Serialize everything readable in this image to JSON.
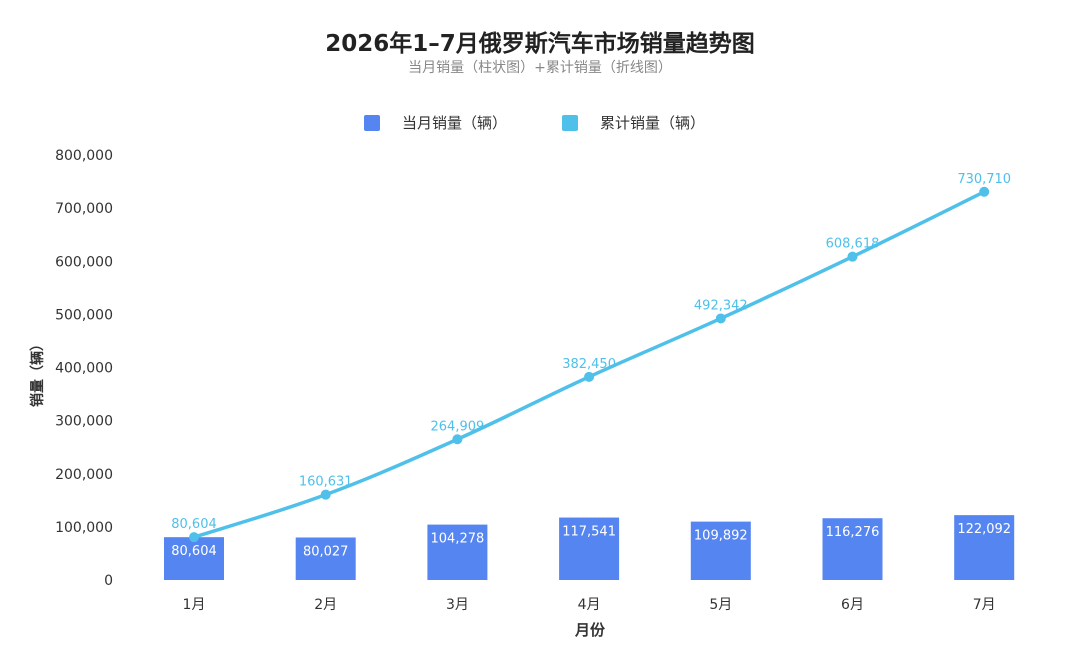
{
  "chart_data": {
    "type": "bar+line",
    "title": "2026年1–7月俄罗斯汽车市场销量趋势图",
    "subtitle": "当月销量（柱状图）+累计销量（折线图）",
    "xlabel": "月份",
    "ylabel": "销量（辆）",
    "categories": [
      "1月",
      "2月",
      "3月",
      "4月",
      "5月",
      "6月",
      "7月"
    ],
    "ylim": [
      0,
      800000
    ],
    "yticks": [
      0,
      100000,
      200000,
      300000,
      400000,
      500000,
      600000,
      700000,
      800000
    ],
    "ytick_labels": [
      "0",
      "100,000",
      "200,000",
      "300,000",
      "400,000",
      "500,000",
      "600,000",
      "700,000",
      "800,000"
    ],
    "legend_position": "top-center",
    "grid": false,
    "series": [
      {
        "name": "当月销量（辆）",
        "type": "bar",
        "color": "#5585f0",
        "values": [
          80604,
          80027,
          104278,
          117541,
          109892,
          116276,
          122092
        ],
        "labels": [
          "80,604",
          "80,027",
          "104,278",
          "117,541",
          "109,892",
          "116,276",
          "122,092"
        ]
      },
      {
        "name": "累计销量（辆）",
        "type": "line",
        "color": "#4ec0e9",
        "values": [
          80604,
          160631,
          264909,
          382450,
          492342,
          608618,
          730710
        ],
        "labels": [
          "80,604",
          "160,631",
          "264,909",
          "382,450",
          "492,342",
          "608,618",
          "730,710"
        ]
      }
    ]
  }
}
